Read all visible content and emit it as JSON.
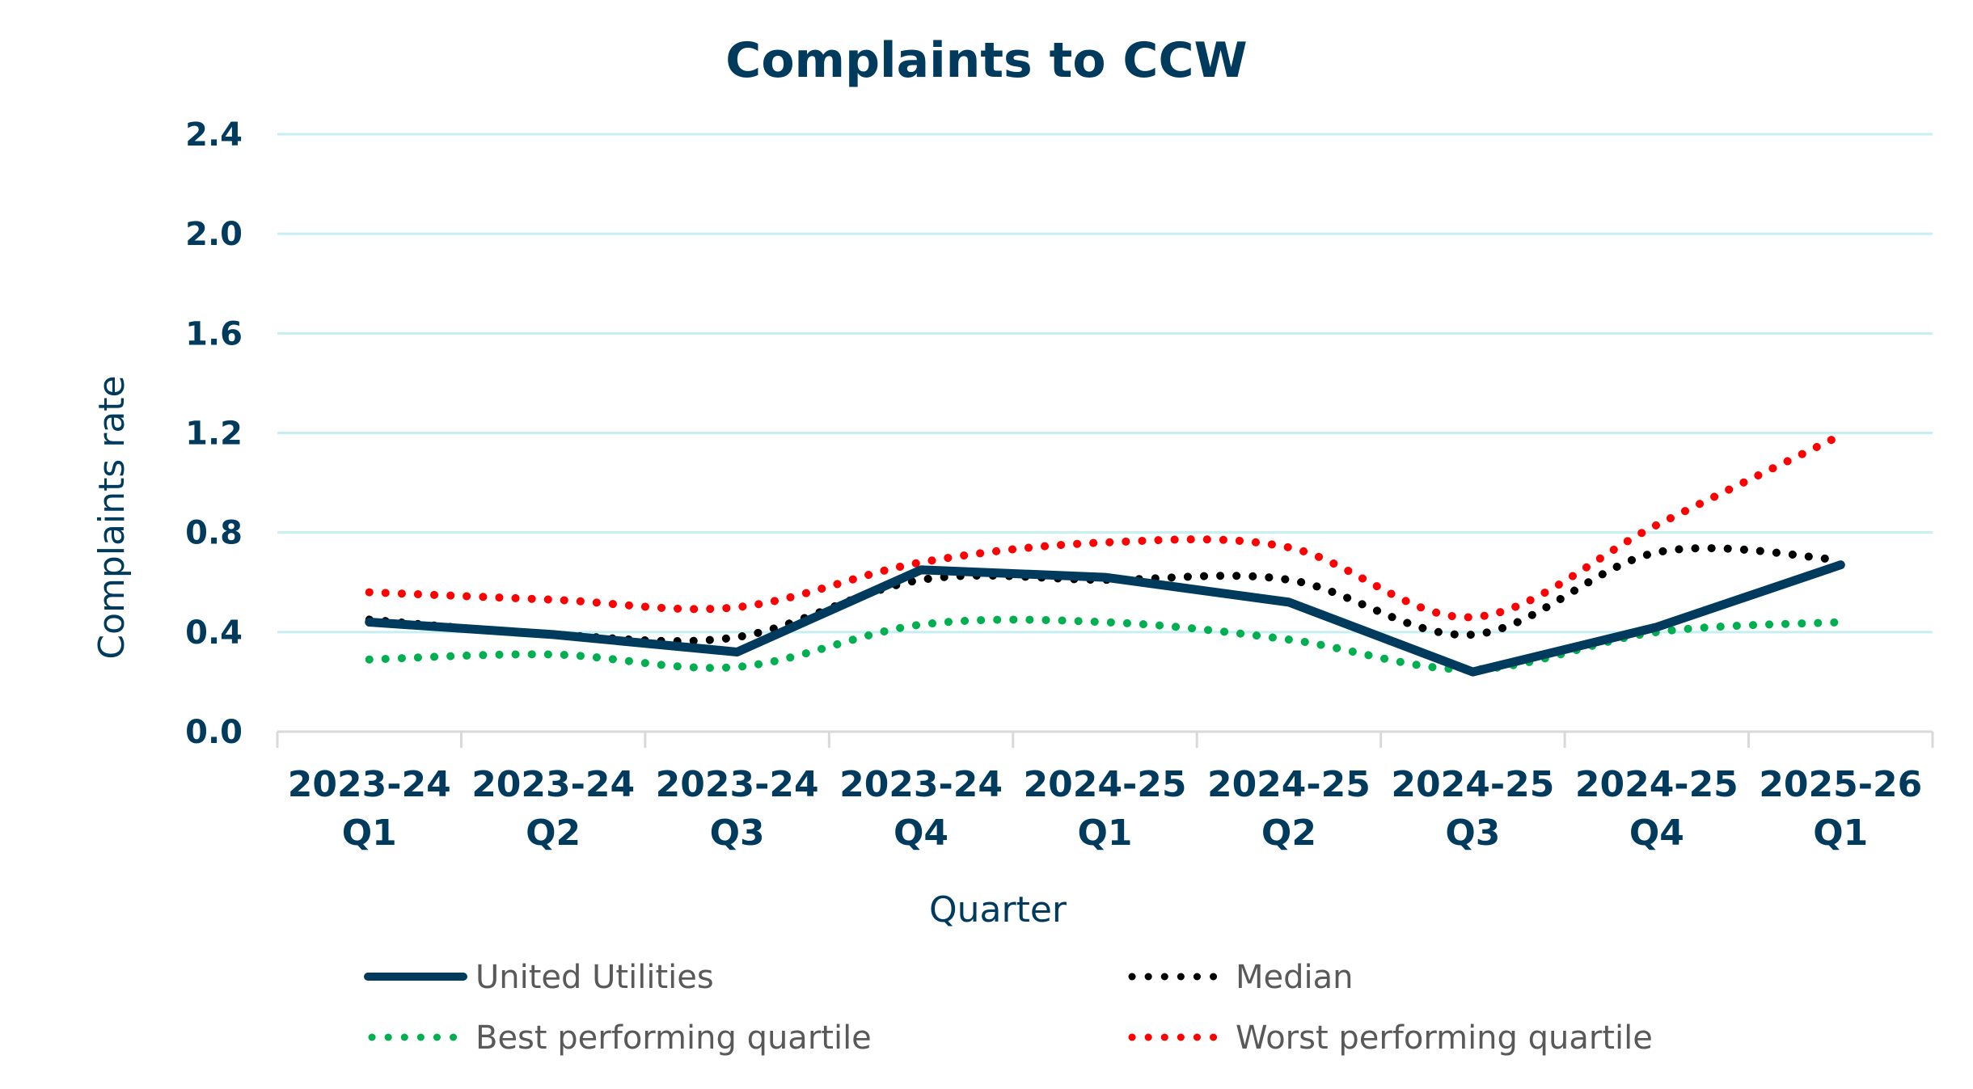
{
  "chart_data": {
    "type": "line",
    "title": "Complaints to CCW",
    "xlabel": "Quarter",
    "ylabel": "Complaints rate",
    "ylim": [
      0,
      2.4
    ],
    "yticks": [
      "0.0",
      "0.4",
      "0.8",
      "1.2",
      "1.6",
      "2.0",
      "2.4"
    ],
    "ytick_values": [
      0,
      0.4,
      0.8,
      1.2,
      1.6,
      2.0,
      2.4
    ],
    "grid": true,
    "legend_position": "bottom",
    "categories": [
      [
        "2023-24",
        "Q1"
      ],
      [
        "2023-24",
        "Q2"
      ],
      [
        "2023-24",
        "Q3"
      ],
      [
        "2023-24",
        "Q4"
      ],
      [
        "2024-25",
        "Q1"
      ],
      [
        "2024-25",
        "Q2"
      ],
      [
        "2024-25",
        "Q3"
      ],
      [
        "2024-25",
        "Q4"
      ],
      [
        "2025-26",
        "Q1"
      ]
    ],
    "series": [
      {
        "name": "United Utilities",
        "style": "solid",
        "color": "#003a5d",
        "values": [
          0.44,
          0.39,
          0.32,
          0.65,
          0.62,
          0.52,
          0.24,
          0.42,
          0.67
        ]
      },
      {
        "name": "Median",
        "style": "dotted",
        "color": "#000000",
        "values": [
          0.45,
          0.39,
          0.38,
          0.61,
          0.61,
          0.61,
          0.39,
          0.72,
          0.69
        ]
      },
      {
        "name": "Best performing quartile",
        "style": "dotted",
        "color": "#00b050",
        "values": [
          0.29,
          0.31,
          0.26,
          0.43,
          0.44,
          0.37,
          0.25,
          0.4,
          0.44
        ]
      },
      {
        "name": "Worst performing quartile",
        "style": "dotted",
        "color": "#ff0000",
        "values": [
          0.56,
          0.53,
          0.5,
          0.68,
          0.76,
          0.74,
          0.46,
          0.83,
          1.19
        ]
      }
    ],
    "colors": {
      "text": "#003a5d",
      "grid": "#c5eff2",
      "axis": "#d9d9d9",
      "legend_text": "#595959"
    }
  }
}
